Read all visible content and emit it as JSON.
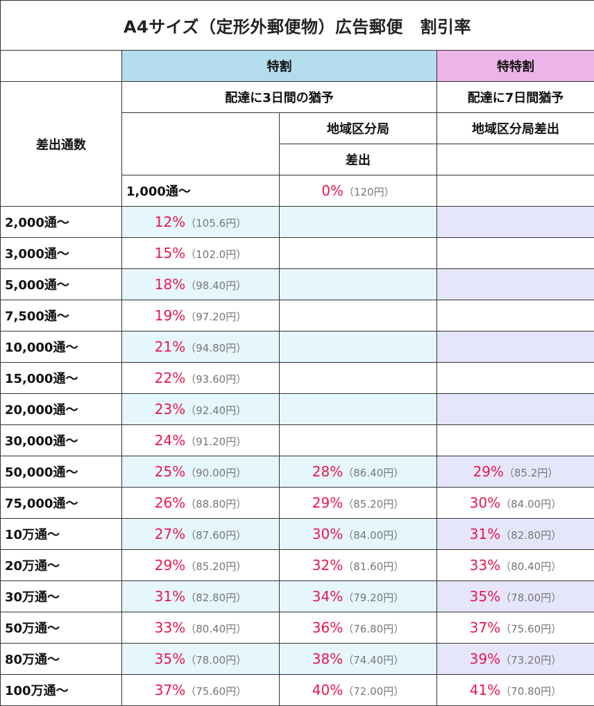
{
  "title": "A4サイズ（定形外郵便物）広告郵便　割引率",
  "headers": {
    "toku": "特割",
    "tokutoku": "特特割",
    "toku_delay": "配達に3日間の猶予",
    "tokutoku_delay": "配達に7日間猶予",
    "region_office": "地域区分局",
    "region_office_dispatch": "地域区分局差出",
    "dispatch": "差出",
    "volume_label": "差出通数",
    "base_volume": "1,000通～",
    "base_pct": "0%",
    "base_yen": "（120円）"
  },
  "colors": {
    "toku_header": "#b3dced",
    "tokutoku_header": "#ecb4e8",
    "toku_row": "#e6f6fd",
    "tokutoku_row": "#e6e6fb",
    "percent": "#e8174f",
    "price": "#777777"
  },
  "rows": [
    {
      "volume": "2,000通～",
      "toku": {
        "pct": "12%",
        "yen": "（105.6円）"
      }
    },
    {
      "volume": "3,000通～",
      "toku": {
        "pct": "15%",
        "yen": "（102.0円）"
      }
    },
    {
      "volume": "5,000通～",
      "toku": {
        "pct": "18%",
        "yen": "（98.40円）"
      }
    },
    {
      "volume": "7,500通～",
      "toku": {
        "pct": "19%",
        "yen": "（97.20円）"
      }
    },
    {
      "volume": "10,000通～",
      "toku": {
        "pct": "21%",
        "yen": "（94.80円）"
      }
    },
    {
      "volume": "15,000通～",
      "toku": {
        "pct": "22%",
        "yen": "（93.60円）"
      }
    },
    {
      "volume": "20,000通～",
      "toku": {
        "pct": "23%",
        "yen": "（92.40円）"
      }
    },
    {
      "volume": "30,000通～",
      "toku": {
        "pct": "24%",
        "yen": "（91.20円）"
      }
    },
    {
      "volume": "50,000通～",
      "toku": {
        "pct": "25%",
        "yen": "（90.00円）"
      },
      "region": {
        "pct": "28%",
        "yen": "（86.40円）"
      },
      "tokutoku": {
        "pct": "29%",
        "yen": "（85.2円）"
      }
    },
    {
      "volume": "75,000通～",
      "toku": {
        "pct": "26%",
        "yen": "（88.80円）"
      },
      "region": {
        "pct": "29%",
        "yen": "（85.20円）"
      },
      "tokutoku": {
        "pct": "30%",
        "yen": "（84.00円）"
      }
    },
    {
      "volume": "10万通～",
      "toku": {
        "pct": "27%",
        "yen": "（87.60円）"
      },
      "region": {
        "pct": "30%",
        "yen": "（84.00円）"
      },
      "tokutoku": {
        "pct": "31%",
        "yen": "（82.80円）"
      }
    },
    {
      "volume": "20万通～",
      "toku": {
        "pct": "29%",
        "yen": "（85.20円）"
      },
      "region": {
        "pct": "32%",
        "yen": "（81.60円）"
      },
      "tokutoku": {
        "pct": "33%",
        "yen": "（80.40円）"
      }
    },
    {
      "volume": "30万通～",
      "toku": {
        "pct": "31%",
        "yen": "（82.80円）"
      },
      "region": {
        "pct": "34%",
        "yen": "（79.20円）"
      },
      "tokutoku": {
        "pct": "35%",
        "yen": "（78.00円）"
      }
    },
    {
      "volume": "50万通～",
      "toku": {
        "pct": "33%",
        "yen": "（80.40円）"
      },
      "region": {
        "pct": "36%",
        "yen": "（76.80円）"
      },
      "tokutoku": {
        "pct": "37%",
        "yen": "（75.60円）"
      }
    },
    {
      "volume": "80万通～",
      "toku": {
        "pct": "35%",
        "yen": "（78.00円）"
      },
      "region": {
        "pct": "38%",
        "yen": "（74.40円）"
      },
      "tokutoku": {
        "pct": "39%",
        "yen": "（73.20円）"
      }
    },
    {
      "volume": "100万通～",
      "toku": {
        "pct": "37%",
        "yen": "（75.60円）"
      },
      "region": {
        "pct": "40%",
        "yen": "（72.00円）"
      },
      "tokutoku": {
        "pct": "41%",
        "yen": "（70.80円）"
      }
    }
  ]
}
